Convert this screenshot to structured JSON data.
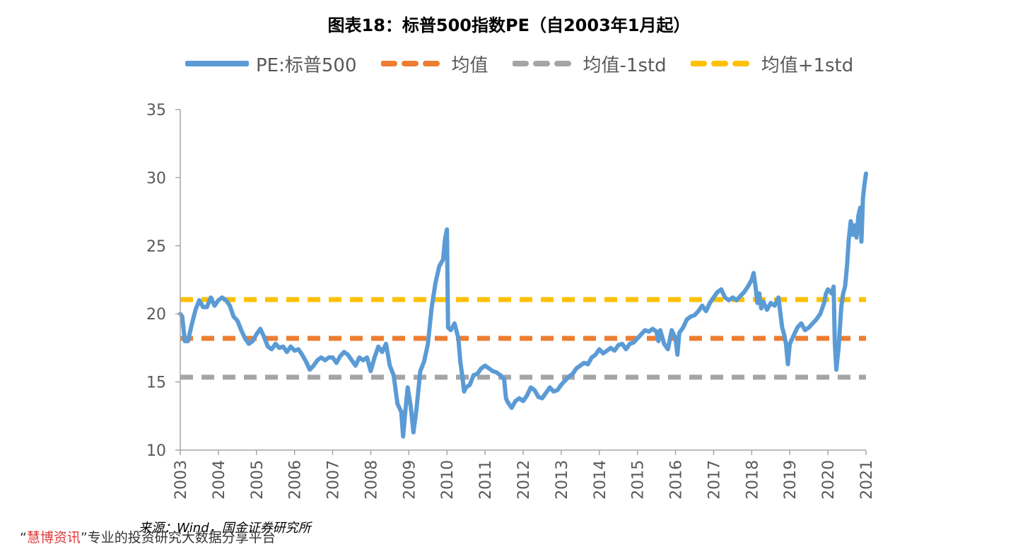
{
  "title": "图表18：标普500指数PE（自2003年1月起）",
  "source": "来源：Wind，国金证券研究所",
  "watermark": {
    "prefix": "“",
    "brand": "慧博资讯",
    "suffix": "”专业的投资研究大数据分享平台"
  },
  "legend": [
    {
      "label": "PE:标普500",
      "color": "#5b9bd5",
      "style": "solid"
    },
    {
      "label": "均值",
      "color": "#ed7d31",
      "style": "dashed"
    },
    {
      "label": "均值-1std",
      "color": "#a5a5a5",
      "style": "dashed"
    },
    {
      "label": "均值+1std",
      "color": "#ffc000",
      "style": "dashed"
    }
  ],
  "chart_data": {
    "type": "line",
    "title": "图表18：标普500指数PE（自2003年1月起）",
    "xlim": [
      2003,
      2021
    ],
    "ylim": [
      10,
      35
    ],
    "y_ticks": [
      "10",
      "15",
      "20",
      "25",
      "30",
      "35"
    ],
    "x_ticks": [
      "2003",
      "2004",
      "2005",
      "2006",
      "2007",
      "2008",
      "2009",
      "2010",
      "2011",
      "2012",
      "2013",
      "2014",
      "2015",
      "2016",
      "2017",
      "2018",
      "2019",
      "2020",
      "2021"
    ],
    "grid": false,
    "legend_position": "top",
    "series": [
      {
        "name": "PE:标普500",
        "color": "#5b9bd5",
        "points": [
          [
            2003.0,
            20.0
          ],
          [
            2003.05,
            19.8
          ],
          [
            2003.12,
            18.0
          ],
          [
            2003.2,
            18.0
          ],
          [
            2003.3,
            19.2
          ],
          [
            2003.4,
            20.3
          ],
          [
            2003.5,
            21.0
          ],
          [
            2003.6,
            20.5
          ],
          [
            2003.7,
            20.5
          ],
          [
            2003.8,
            21.2
          ],
          [
            2003.9,
            20.6
          ],
          [
            2004.0,
            21.0
          ],
          [
            2004.1,
            21.2
          ],
          [
            2004.2,
            21.0
          ],
          [
            2004.3,
            20.6
          ],
          [
            2004.4,
            19.8
          ],
          [
            2004.5,
            19.5
          ],
          [
            2004.6,
            18.8
          ],
          [
            2004.7,
            18.2
          ],
          [
            2004.8,
            17.8
          ],
          [
            2004.9,
            18.0
          ],
          [
            2005.0,
            18.5
          ],
          [
            2005.1,
            18.9
          ],
          [
            2005.2,
            18.3
          ],
          [
            2005.3,
            17.6
          ],
          [
            2005.4,
            17.4
          ],
          [
            2005.5,
            17.8
          ],
          [
            2005.6,
            17.5
          ],
          [
            2005.7,
            17.6
          ],
          [
            2005.8,
            17.2
          ],
          [
            2005.9,
            17.6
          ],
          [
            2006.0,
            17.3
          ],
          [
            2006.1,
            17.4
          ],
          [
            2006.2,
            17.0
          ],
          [
            2006.3,
            16.5
          ],
          [
            2006.4,
            15.9
          ],
          [
            2006.5,
            16.2
          ],
          [
            2006.6,
            16.6
          ],
          [
            2006.7,
            16.8
          ],
          [
            2006.8,
            16.6
          ],
          [
            2006.9,
            16.8
          ],
          [
            2007.0,
            16.8
          ],
          [
            2007.1,
            16.4
          ],
          [
            2007.2,
            16.9
          ],
          [
            2007.3,
            17.2
          ],
          [
            2007.4,
            17.0
          ],
          [
            2007.5,
            16.6
          ],
          [
            2007.6,
            16.2
          ],
          [
            2007.7,
            16.8
          ],
          [
            2007.8,
            16.6
          ],
          [
            2007.9,
            16.8
          ],
          [
            2008.0,
            15.8
          ],
          [
            2008.1,
            16.8
          ],
          [
            2008.2,
            17.6
          ],
          [
            2008.3,
            17.2
          ],
          [
            2008.4,
            17.8
          ],
          [
            2008.5,
            16.2
          ],
          [
            2008.6,
            15.5
          ],
          [
            2008.7,
            13.4
          ],
          [
            2008.8,
            12.8
          ],
          [
            2008.85,
            11.0
          ],
          [
            2008.9,
            12.6
          ],
          [
            2008.97,
            14.6
          ],
          [
            2009.05,
            13.2
          ],
          [
            2009.12,
            11.3
          ],
          [
            2009.2,
            13.0
          ],
          [
            2009.3,
            15.8
          ],
          [
            2009.4,
            16.5
          ],
          [
            2009.5,
            17.8
          ],
          [
            2009.6,
            20.5
          ],
          [
            2009.7,
            22.3
          ],
          [
            2009.8,
            23.5
          ],
          [
            2009.9,
            24.0
          ],
          [
            2009.95,
            25.5
          ],
          [
            2010.0,
            26.2
          ],
          [
            2010.03,
            19.0
          ],
          [
            2010.1,
            18.8
          ],
          [
            2010.2,
            19.3
          ],
          [
            2010.3,
            18.2
          ],
          [
            2010.35,
            16.5
          ],
          [
            2010.4,
            15.5
          ],
          [
            2010.45,
            14.3
          ],
          [
            2010.5,
            14.6
          ],
          [
            2010.6,
            14.8
          ],
          [
            2010.7,
            15.5
          ],
          [
            2010.8,
            15.6
          ],
          [
            2010.9,
            16.0
          ],
          [
            2011.0,
            16.2
          ],
          [
            2011.1,
            16.0
          ],
          [
            2011.2,
            15.8
          ],
          [
            2011.3,
            15.7
          ],
          [
            2011.4,
            15.5
          ],
          [
            2011.5,
            15.2
          ],
          [
            2011.55,
            13.8
          ],
          [
            2011.6,
            13.5
          ],
          [
            2011.7,
            13.1
          ],
          [
            2011.8,
            13.6
          ],
          [
            2011.9,
            13.8
          ],
          [
            2012.0,
            13.6
          ],
          [
            2012.1,
            14.0
          ],
          [
            2012.2,
            14.6
          ],
          [
            2012.3,
            14.4
          ],
          [
            2012.4,
            13.9
          ],
          [
            2012.5,
            13.8
          ],
          [
            2012.6,
            14.2
          ],
          [
            2012.7,
            14.6
          ],
          [
            2012.8,
            14.3
          ],
          [
            2012.9,
            14.4
          ],
          [
            2013.0,
            14.8
          ],
          [
            2013.1,
            15.1
          ],
          [
            2013.2,
            15.4
          ],
          [
            2013.3,
            15.6
          ],
          [
            2013.4,
            16.0
          ],
          [
            2013.5,
            16.2
          ],
          [
            2013.6,
            16.4
          ],
          [
            2013.7,
            16.3
          ],
          [
            2013.8,
            16.8
          ],
          [
            2013.9,
            17.0
          ],
          [
            2014.0,
            17.4
          ],
          [
            2014.1,
            17.1
          ],
          [
            2014.2,
            17.3
          ],
          [
            2014.3,
            17.5
          ],
          [
            2014.4,
            17.3
          ],
          [
            2014.5,
            17.7
          ],
          [
            2014.6,
            17.8
          ],
          [
            2014.7,
            17.4
          ],
          [
            2014.8,
            17.8
          ],
          [
            2014.9,
            17.9
          ],
          [
            2015.0,
            18.2
          ],
          [
            2015.1,
            18.5
          ],
          [
            2015.2,
            18.8
          ],
          [
            2015.3,
            18.7
          ],
          [
            2015.4,
            18.9
          ],
          [
            2015.5,
            18.7
          ],
          [
            2015.55,
            18.0
          ],
          [
            2015.6,
            18.8
          ],
          [
            2015.7,
            17.8
          ],
          [
            2015.8,
            17.4
          ],
          [
            2015.9,
            18.8
          ],
          [
            2016.0,
            18.2
          ],
          [
            2016.05,
            17.0
          ],
          [
            2016.1,
            18.6
          ],
          [
            2016.2,
            19.0
          ],
          [
            2016.3,
            19.6
          ],
          [
            2016.4,
            19.8
          ],
          [
            2016.5,
            19.9
          ],
          [
            2016.6,
            20.2
          ],
          [
            2016.7,
            20.6
          ],
          [
            2016.8,
            20.2
          ],
          [
            2016.9,
            20.8
          ],
          [
            2017.0,
            21.2
          ],
          [
            2017.1,
            21.6
          ],
          [
            2017.2,
            21.8
          ],
          [
            2017.3,
            21.2
          ],
          [
            2017.4,
            21.0
          ],
          [
            2017.5,
            21.2
          ],
          [
            2017.6,
            21.0
          ],
          [
            2017.7,
            21.3
          ],
          [
            2017.8,
            21.6
          ],
          [
            2017.9,
            22.0
          ],
          [
            2018.0,
            22.5
          ],
          [
            2018.05,
            23.0
          ],
          [
            2018.1,
            22.0
          ],
          [
            2018.15,
            20.8
          ],
          [
            2018.2,
            21.5
          ],
          [
            2018.25,
            20.4
          ],
          [
            2018.3,
            20.9
          ],
          [
            2018.4,
            20.3
          ],
          [
            2018.5,
            20.8
          ],
          [
            2018.6,
            20.6
          ],
          [
            2018.7,
            21.2
          ],
          [
            2018.8,
            19.0
          ],
          [
            2018.85,
            18.5
          ],
          [
            2018.9,
            17.8
          ],
          [
            2018.95,
            16.3
          ],
          [
            2019.0,
            17.8
          ],
          [
            2019.1,
            18.4
          ],
          [
            2019.2,
            19.0
          ],
          [
            2019.3,
            19.3
          ],
          [
            2019.4,
            18.8
          ],
          [
            2019.5,
            19.0
          ],
          [
            2019.6,
            19.3
          ],
          [
            2019.7,
            19.6
          ],
          [
            2019.8,
            20.0
          ],
          [
            2019.9,
            20.8
          ],
          [
            2019.95,
            21.5
          ],
          [
            2020.0,
            21.8
          ],
          [
            2020.1,
            21.5
          ],
          [
            2020.15,
            22.0
          ],
          [
            2020.18,
            18.0
          ],
          [
            2020.22,
            15.9
          ],
          [
            2020.28,
            17.5
          ],
          [
            2020.35,
            20.5
          ],
          [
            2020.4,
            21.5
          ],
          [
            2020.45,
            22.0
          ],
          [
            2020.5,
            23.5
          ],
          [
            2020.55,
            25.5
          ],
          [
            2020.6,
            26.8
          ],
          [
            2020.65,
            25.8
          ],
          [
            2020.7,
            26.5
          ],
          [
            2020.75,
            25.6
          ],
          [
            2020.8,
            27.2
          ],
          [
            2020.85,
            27.8
          ],
          [
            2020.88,
            25.3
          ],
          [
            2020.92,
            28.5
          ],
          [
            2020.96,
            29.5
          ],
          [
            2021.0,
            30.3
          ]
        ]
      },
      {
        "name": "均值",
        "color": "#ed7d31",
        "points": [
          [
            2003.0,
            18.2
          ],
          [
            2021.0,
            18.2
          ]
        ]
      },
      {
        "name": "均值-1std",
        "color": "#a5a5a5",
        "points": [
          [
            2003.0,
            15.35
          ],
          [
            2021.0,
            15.35
          ]
        ]
      },
      {
        "name": "均值+1std",
        "color": "#ffc000",
        "points": [
          [
            2003.0,
            21.05
          ],
          [
            2021.0,
            21.05
          ]
        ]
      }
    ]
  }
}
